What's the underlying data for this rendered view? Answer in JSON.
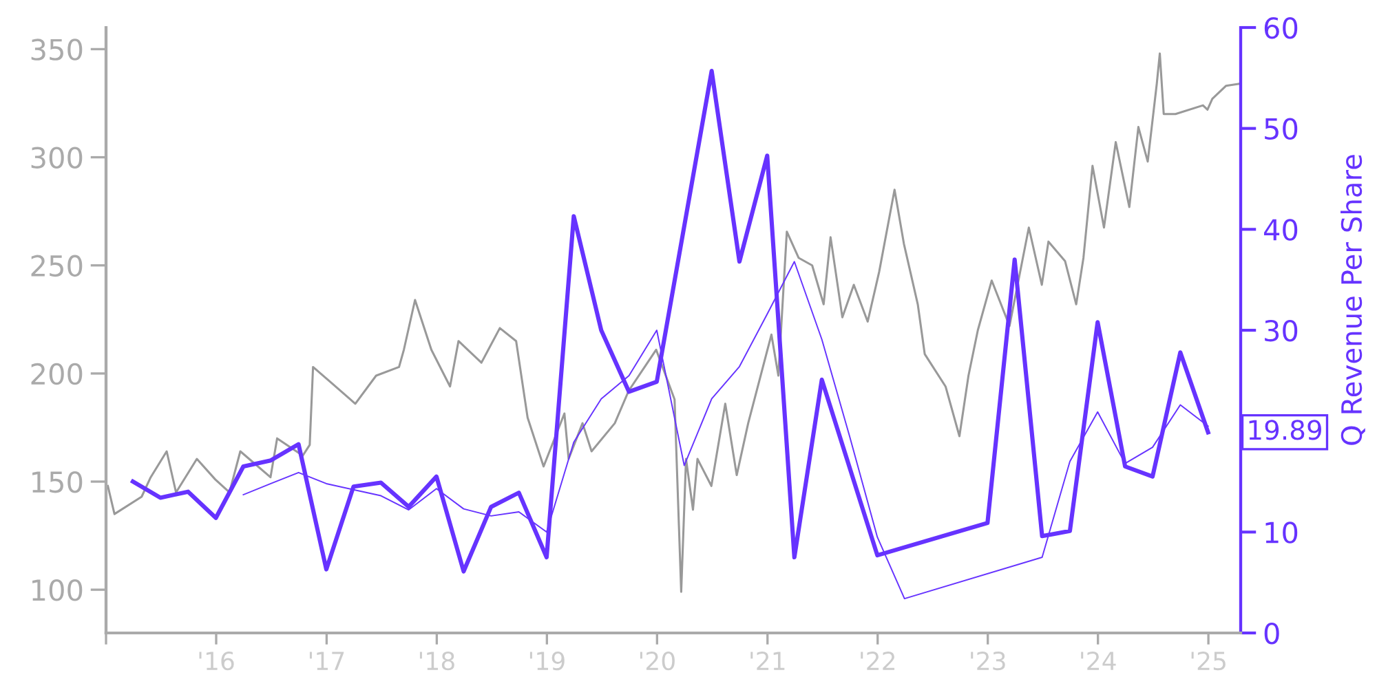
{
  "chart_data": {
    "type": "line",
    "ylabel": null,
    "y2label": "Q Revenue Per Share",
    "xlim": [
      "2015-01-01",
      "2025-04-18"
    ],
    "xticks": [
      {
        "value": "2015-01-01",
        "label": null
      },
      {
        "value": "2016-01-01",
        "label": "'16"
      },
      {
        "value": "2017-01-01",
        "label": "'17"
      },
      {
        "value": "2018-01-01",
        "label": "'18"
      },
      {
        "value": "2019-01-01",
        "label": "'19"
      },
      {
        "value": "2020-01-01",
        "label": "'20"
      },
      {
        "value": "2021-01-01",
        "label": "'21"
      },
      {
        "value": "2022-01-01",
        "label": "'22"
      },
      {
        "value": "2023-01-01",
        "label": "'23"
      },
      {
        "value": "2024-01-01",
        "label": "'24"
      },
      {
        "value": "2025-01-01",
        "label": "'25"
      }
    ],
    "ylim": [
      80,
      360
    ],
    "yticks": [
      100,
      150,
      200,
      250,
      300,
      350
    ],
    "y2lim": [
      0,
      60
    ],
    "y2ticks": [
      0,
      10,
      30,
      40,
      50,
      60
    ],
    "grid": false,
    "legend": false,
    "marker": "none",
    "line_style": "solid",
    "annotations": [
      "19.89"
    ],
    "series": [
      {
        "color": "#999999",
        "axis": "y",
        "x": [
          "2015-01-07",
          "2015-01-29",
          "2015-04-29",
          "2015-05-29",
          "2015-07-21",
          "2015-08-21",
          "2015-10-29",
          "2015-12-29",
          "2016-02-14",
          "2016-03-21",
          "2016-06-29",
          "2016-07-21",
          "2016-10-14",
          "2016-11-06",
          "2016-11-17",
          "2017-01-14",
          "2017-04-06",
          "2017-06-14",
          "2017-08-29",
          "2017-09-14",
          "2017-10-21",
          "2017-12-14",
          "2018-02-14",
          "2018-03-14",
          "2018-05-29",
          "2018-07-29",
          "2018-09-21",
          "2018-10-29",
          "2018-12-21",
          "2019-02-28",
          "2019-03-14",
          "2019-04-29",
          "2019-05-29",
          "2019-08-14",
          "2019-09-29",
          "2019-12-29",
          "2020-02-28",
          "2020-03-21",
          "2020-04-06",
          "2020-04-29",
          "2020-05-14",
          "2020-06-29",
          "2020-08-14",
          "2020-09-21",
          "2020-10-29",
          "2021-01-14",
          "2021-02-06",
          "2021-03-06",
          "2021-04-14",
          "2021-05-29",
          "2021-07-06",
          "2021-07-29",
          "2021-09-06",
          "2021-10-14",
          "2021-11-29",
          "2022-01-06",
          "2022-02-26",
          "2022-03-29",
          "2022-05-14",
          "2022-06-06",
          "2022-08-14",
          "2022-09-29",
          "2022-10-29",
          "2022-11-29",
          "2023-01-14",
          "2023-03-14",
          "2023-05-17",
          "2023-06-29",
          "2023-07-21",
          "2023-09-14",
          "2023-10-21",
          "2023-11-14",
          "2023-12-14",
          "2024-01-21",
          "2024-02-29",
          "2024-04-14",
          "2024-05-14",
          "2024-06-14",
          "2024-07-14",
          "2024-07-24",
          "2024-08-06",
          "2024-09-14",
          "2024-12-14",
          "2024-12-29",
          "2025-01-14",
          "2025-02-28",
          "2025-04-14"
        ],
        "values": [
          148,
          135,
          143,
          152,
          164,
          145,
          160.5,
          151,
          145,
          164,
          152,
          170,
          162,
          167,
          203,
          196,
          186,
          199,
          203,
          211,
          234,
          211,
          194,
          215,
          205,
          221,
          215,
          179.6,
          157,
          181.5,
          160.5,
          177,
          164,
          177,
          192,
          211,
          188,
          99,
          160.5,
          137,
          160.5,
          148,
          186,
          153,
          177,
          218,
          199,
          265.6,
          253.5,
          250,
          232,
          263,
          226,
          241,
          224,
          247,
          285,
          260,
          232,
          209,
          194,
          171,
          199,
          220,
          243,
          222,
          267.5,
          241,
          261,
          252,
          232,
          253.5,
          296,
          267.5,
          307,
          277,
          314,
          298,
          334,
          348,
          320,
          320,
          324,
          322,
          327,
          333,
          334
        ]
      },
      {
        "color": "#6633ff",
        "axis": "y2",
        "x": [
          "2015-03-31",
          "2015-06-30",
          "2015-09-30",
          "2015-12-31",
          "2016-03-31",
          "2016-06-30",
          "2016-09-30",
          "2016-12-31",
          "2017-03-31",
          "2017-06-30",
          "2017-09-30",
          "2017-12-31",
          "2018-03-31",
          "2018-06-30",
          "2018-09-30",
          "2018-12-31",
          "2019-03-31",
          "2019-06-30",
          "2019-09-30",
          "2019-12-31",
          "2020-03-31",
          "2020-06-30",
          "2020-09-30",
          "2020-12-31",
          "2021-03-31",
          "2021-06-30",
          "2021-09-30",
          "2021-12-31",
          "2022-03-31",
          "2022-06-30",
          "2022-09-30",
          "2022-12-31",
          "2023-03-31",
          "2023-06-30",
          "2023-09-30",
          "2023-12-31",
          "2024-03-31",
          "2024-06-30",
          "2024-09-30",
          "2024-12-31"
        ],
        "values": [
          15.0,
          13.4,
          14,
          11.4,
          16.5,
          17.1,
          18.7,
          6.3,
          14.5,
          14.9,
          12.5,
          15.5,
          6.1,
          12.5,
          13.9,
          7.5,
          41.3,
          30,
          23.9,
          24.9,
          null,
          55.7,
          36.8,
          47.3,
          7.5,
          25.1,
          null,
          7.7,
          null,
          null,
          null,
          10.9,
          37.0,
          9.6,
          10.1,
          30.8,
          16.5,
          15.5,
          27.8,
          19.89
        ]
      },
      {
        "color": "#6633ff",
        "axis": "y2",
        "x": [
          "2016-03-31",
          "2016-06-30",
          "2016-09-30",
          "2016-12-31",
          "2017-03-31",
          "2017-06-30",
          "2017-09-30",
          "2017-12-31",
          "2018-03-31",
          "2018-06-30",
          "2018-09-30",
          "2018-12-31",
          "2019-03-31",
          "2019-06-30",
          "2019-09-30",
          "2019-12-31",
          "2020-03-31",
          "2020-06-30",
          "2020-09-30",
          "2020-12-31",
          "2021-03-31",
          "2021-06-30",
          "2021-09-30",
          "2021-12-31",
          "2022-03-31",
          "2022-06-30",
          "2022-09-30",
          "2022-12-31",
          "2023-03-31",
          "2023-06-30",
          "2023-09-30",
          "2023-12-31",
          "2024-03-31",
          "2024-06-30",
          "2024-09-30",
          "2024-12-31"
        ],
        "values": [
          13.7,
          14.8,
          15.9,
          14.8,
          14.2,
          13.6,
          12.2,
          14.3,
          12.3,
          11.6,
          12.0,
          10.0,
          18.9,
          23.2,
          25.5,
          30.0,
          16.6,
          23.2,
          26.4,
          31.6,
          36.8,
          29.1,
          19.5,
          9.5,
          3.4,
          null,
          null,
          null,
          null,
          7.5,
          17.0,
          21.9,
          16.8,
          18.4,
          22.6,
          20.5
        ]
      }
    ]
  }
}
